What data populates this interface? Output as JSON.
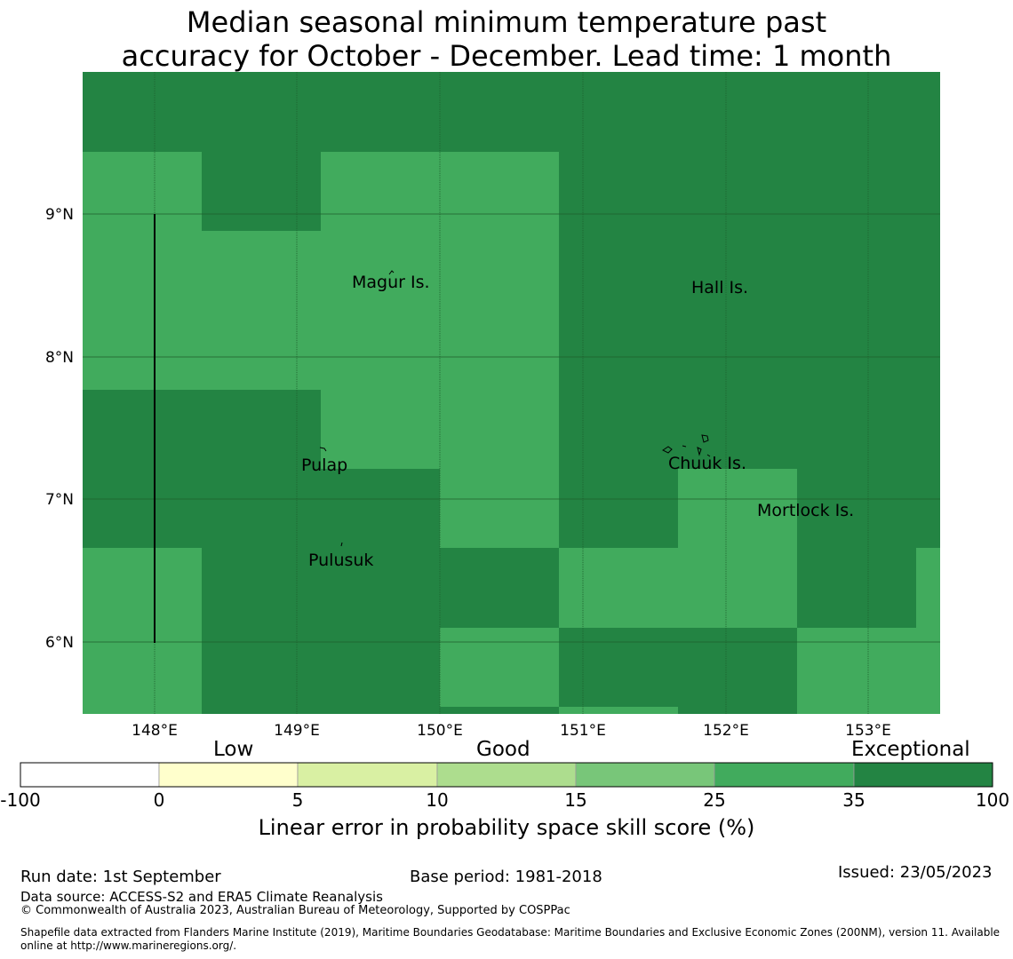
{
  "title": {
    "line1": "Median seasonal minimum temperature past",
    "line2": "accuracy for October - December. Lead time: 1 month"
  },
  "map": {
    "lon_range": [
      147.5,
      153.5
    ],
    "lat_range": [
      5.5,
      10.0
    ],
    "lon_ticks": [
      "148°E",
      "149°E",
      "150°E",
      "151°E",
      "152°E",
      "153°E"
    ],
    "lat_ticks": [
      "9°N",
      "8°N",
      "7°N",
      "6°N"
    ],
    "grid_color": "#1f5f2c",
    "islands": [
      {
        "name": "Magur Is.",
        "lon": 149.55,
        "lat": 8.55
      },
      {
        "name": "Hall Is.",
        "lon": 151.95,
        "lat": 8.5
      },
      {
        "name": "Pulap",
        "lon": 149.2,
        "lat": 7.25
      },
      {
        "name": "Chuuk Is.",
        "lon": 151.9,
        "lat": 7.25
      },
      {
        "name": "Mortlock Is.",
        "lon": 152.6,
        "lat": 6.9
      },
      {
        "name": "Pulusuk",
        "lon": 149.3,
        "lat": 6.6
      }
    ]
  },
  "colorbar": {
    "categories": [
      "Low",
      "Good",
      "Exceptional"
    ],
    "ticks": [
      "-100",
      "0",
      "5",
      "10",
      "15",
      "25",
      "35",
      "100"
    ],
    "colors": [
      "#ffffff",
      "#ffffcc",
      "#d9f0a3",
      "#addd8e",
      "#78c679",
      "#41ab5d",
      "#238443"
    ],
    "label": "Linear error in probability space skill score (%)"
  },
  "footer": {
    "run_date": "Run date: 1st September",
    "base_period": "Base period: 1981-2018",
    "issued": "Issued: 23/05/2023",
    "data_source": "Data source: ACCESS-S2 and ERA5 Climate Reanalysis",
    "copyright": "© Commonwealth of Australia 2023, Australian Bureau of Meteorology, Supported by COSPPac",
    "shapefile_line1": "Shapefile data extracted from Flanders Marine Institute (2019), Maritime Boundaries Geodatabase: Maritime Boundaries and Exclusive Economic Zones (200NM), version 11. Available",
    "shapefile_line2": "online at http://www.marineregions.org/."
  }
}
